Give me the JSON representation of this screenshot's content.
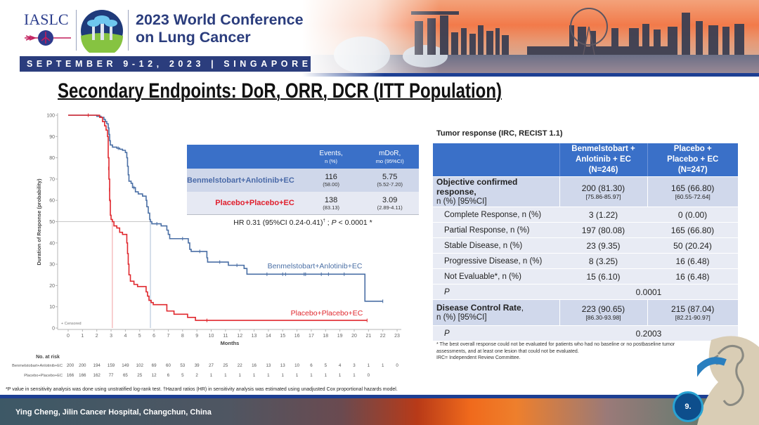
{
  "header": {
    "org_logo": "IASLC",
    "conference_line1": "2023 World Conference",
    "conference_line2": "on Lung Cancer",
    "dates_bar": "SEPTEMBER 9-12, 2023 | SINGAPORE"
  },
  "slide": {
    "title": "Secondary Endpoints: DoR, ORR, DCR (ITT Population)",
    "presenter": "Ying Cheng, Jilin Cancer Hospital, Changchun, China",
    "page_number": "9."
  },
  "colors": {
    "brand_navy": "#2b3d7d",
    "table_header": "#3a70c8",
    "arm_experimental": "#4a6fa5",
    "arm_control": "#e0282e"
  },
  "km_summary": {
    "header": {
      "events_label": "Events,",
      "events_unit": "n (%)",
      "mdor_label": "mDoR,",
      "mdor_unit": "mo (95%CI)"
    },
    "rows": [
      {
        "arm": "Benmelstobart+Anlotinib+EC",
        "events": "116",
        "events_pct": "(58.00)",
        "mdor": "5.75",
        "mdor_ci": "(5.52-7.20)"
      },
      {
        "arm": "Placebo+Placebo+EC",
        "events": "138",
        "events_pct": "(83.13)",
        "mdor": "3.09",
        "mdor_ci": "(2.89-4.11)"
      }
    ],
    "hr": {
      "text": "HR 0.31 (95%CI 0.24-0.41)",
      "dagger": "†",
      "sep": " ; ",
      "p_label": "P",
      "p_value": " < 0.0001 *"
    }
  },
  "footnote_left": "*P value in sensitivity analysis was done using unstratified log-rank test.  †Hazard ratios (HR) in sensitivity analysis was estimated using unadjusted Cox proportional hazards model.",
  "tumor_response": {
    "title": "Tumor response (IRC, RECIST 1.1)",
    "columns": [
      {
        "line1": "Benmelstobart +",
        "line2": "Anlotinib + EC",
        "n": "(N=246)"
      },
      {
        "line1": "Placebo +",
        "line2": "Placebo + EC",
        "n": "(N=247)"
      }
    ],
    "orr": {
      "label": "Objective confirmed response,",
      "sublabel": "n (%) [95%CI]",
      "values": [
        "200 (81.30)",
        "165 (66.80)"
      ],
      "ci": [
        "[75.86-85.97]",
        "[60.55-72.64]"
      ]
    },
    "subrows": [
      {
        "label": "Complete Response, n (%)",
        "values": [
          "3 (1.22)",
          "0 (0.00)"
        ]
      },
      {
        "label": "Partial Response, n (%)",
        "values": [
          "197 (80.08)",
          "165 (66.80)"
        ]
      },
      {
        "label": "Stable Disease, n (%)",
        "values": [
          "23 (9.35)",
          "50 (20.24)"
        ]
      },
      {
        "label": "Progressive Disease, n (%)",
        "values": [
          "8 (3.25)",
          "16 (6.48)"
        ]
      },
      {
        "label": "Not Evaluable*, n (%)",
        "values": [
          "15 (6.10)",
          "16 (6.48)"
        ]
      }
    ],
    "orr_p": {
      "label": "P",
      "value": "0.0001"
    },
    "dcr": {
      "label": "Disease Control Rate",
      "label_suffix": ",",
      "sublabel": "n (%) [95%CI]",
      "values": [
        "223 (90.65)",
        "215 (87.04)"
      ],
      "ci": [
        "[86.30-93.98]",
        "[82.21-90.97]"
      ]
    },
    "dcr_p": {
      "label": "P",
      "value": "0.2003"
    },
    "footnotes": [
      "* The best overall response could not be evaluated for patients who had no baseline or no postbaseline tumor assessments, and at least one lesion that could not be evaluated.",
      "IRC= Independent Review Committee."
    ]
  },
  "chart_data": {
    "type": "line",
    "subtype": "kaplan-meier-step",
    "title": "",
    "xlabel": "Months",
    "ylabel": "Duration of Response (probability)",
    "xlim": [
      0,
      23
    ],
    "ylim": [
      0,
      100
    ],
    "xticks": [
      0,
      1,
      2,
      3,
      4,
      5,
      6,
      7,
      8,
      9,
      10,
      11,
      12,
      13,
      14,
      15,
      16,
      17,
      18,
      19,
      20,
      21,
      22,
      23
    ],
    "yticks": [
      0,
      10,
      20,
      30,
      40,
      50,
      60,
      70,
      80,
      90,
      100
    ],
    "grid": false,
    "legend_note": "+ Censored",
    "median_reference_level": 50,
    "series": [
      {
        "name": "Benmelstobart+Anlotinib+EC",
        "color": "#4a6fa5",
        "median": 5.75,
        "steps": [
          [
            0,
            100
          ],
          [
            2.0,
            99.5
          ],
          [
            2.3,
            99
          ],
          [
            2.5,
            98
          ],
          [
            2.6,
            97
          ],
          [
            2.7,
            96
          ],
          [
            2.8,
            94
          ],
          [
            2.85,
            91
          ],
          [
            2.9,
            88
          ],
          [
            2.95,
            86
          ],
          [
            3.1,
            85
          ],
          [
            3.4,
            84.5
          ],
          [
            3.6,
            84
          ],
          [
            3.8,
            83.5
          ],
          [
            4.0,
            82.5
          ],
          [
            4.1,
            80
          ],
          [
            4.15,
            76
          ],
          [
            4.2,
            72
          ],
          [
            4.25,
            69
          ],
          [
            4.4,
            68
          ],
          [
            4.5,
            66
          ],
          [
            4.7,
            64
          ],
          [
            4.9,
            63
          ],
          [
            5.2,
            62
          ],
          [
            5.45,
            60
          ],
          [
            5.5,
            57
          ],
          [
            5.6,
            54
          ],
          [
            5.7,
            51
          ],
          [
            5.75,
            50
          ],
          [
            5.85,
            49
          ],
          [
            6.5,
            48
          ],
          [
            6.9,
            46
          ],
          [
            7.0,
            44
          ],
          [
            7.1,
            42
          ],
          [
            8.4,
            40
          ],
          [
            8.5,
            37
          ],
          [
            8.6,
            36
          ],
          [
            9.7,
            33
          ],
          [
            9.75,
            31
          ],
          [
            11.2,
            29.5
          ],
          [
            12.3,
            28
          ],
          [
            12.5,
            25.3
          ],
          [
            20.75,
            12.6
          ]
        ],
        "end": 22.0,
        "censored": [
          [
            1.4,
            100
          ],
          [
            3.5,
            84.5
          ],
          [
            4.6,
            66
          ],
          [
            6.2,
            49
          ],
          [
            8.0,
            42
          ],
          [
            9.2,
            36
          ],
          [
            10.6,
            31
          ],
          [
            11.8,
            29.5
          ],
          [
            13.9,
            25.3
          ],
          [
            15.0,
            25.3
          ],
          [
            15.2,
            25.3
          ],
          [
            16.5,
            25.3
          ],
          [
            16.6,
            25.3
          ],
          [
            17.7,
            25.3
          ],
          [
            18.2,
            25.3
          ],
          [
            19.3,
            25.3
          ],
          [
            22.0,
            12.6
          ]
        ]
      },
      {
        "name": "Placebo+Placebo+EC",
        "color": "#e0282e",
        "median": 3.09,
        "steps": [
          [
            0,
            100
          ],
          [
            2.2,
            99
          ],
          [
            2.4,
            97
          ],
          [
            2.55,
            95
          ],
          [
            2.65,
            93
          ],
          [
            2.75,
            90
          ],
          [
            2.8,
            80
          ],
          [
            2.85,
            70
          ],
          [
            2.9,
            60
          ],
          [
            2.95,
            53
          ],
          [
            3.0,
            51
          ],
          [
            3.09,
            50
          ],
          [
            3.2,
            48
          ],
          [
            3.4,
            47
          ],
          [
            3.6,
            45
          ],
          [
            3.8,
            44
          ],
          [
            4.1,
            40
          ],
          [
            4.15,
            35
          ],
          [
            4.2,
            30
          ],
          [
            4.25,
            25
          ],
          [
            4.35,
            22
          ],
          [
            4.6,
            20.5
          ],
          [
            4.85,
            19.5
          ],
          [
            5.45,
            17
          ],
          [
            5.55,
            15
          ],
          [
            5.65,
            13
          ],
          [
            5.8,
            12
          ],
          [
            5.95,
            11
          ],
          [
            6.9,
            8
          ],
          [
            7.4,
            6.5
          ],
          [
            8.35,
            5
          ],
          [
            8.9,
            3.6
          ]
        ],
        "end": 20.9,
        "censored": [
          [
            1.4,
            100
          ],
          [
            2.82,
            75
          ],
          [
            2.88,
            65
          ],
          [
            2.92,
            60
          ],
          [
            4.15,
            38
          ],
          [
            4.2,
            33
          ],
          [
            4.25,
            27
          ],
          [
            9.7,
            3.6
          ],
          [
            20.9,
            3.6
          ]
        ]
      }
    ],
    "risk_table": {
      "title": "No. at risk",
      "times": [
        0,
        1,
        2,
        3,
        4,
        5,
        6,
        7,
        8,
        9,
        10,
        11,
        12,
        13,
        14,
        15,
        16,
        17,
        18,
        19,
        20,
        21,
        22,
        23
      ],
      "rows": [
        {
          "label": "Benmelstobart+Anlotinib+EC",
          "values": [
            200,
            200,
            194,
            159,
            149,
            102,
            69,
            60,
            53,
            39,
            27,
            25,
            22,
            16,
            13,
            13,
            10,
            6,
            5,
            4,
            3,
            1,
            1,
            0
          ]
        },
        {
          "label": "Placebo+Placebo+EC",
          "values": [
            166,
            166,
            162,
            77,
            65,
            25,
            12,
            6,
            5,
            2,
            1,
            1,
            1,
            1,
            1,
            1,
            1,
            1,
            1,
            1,
            1,
            0
          ]
        }
      ]
    }
  }
}
